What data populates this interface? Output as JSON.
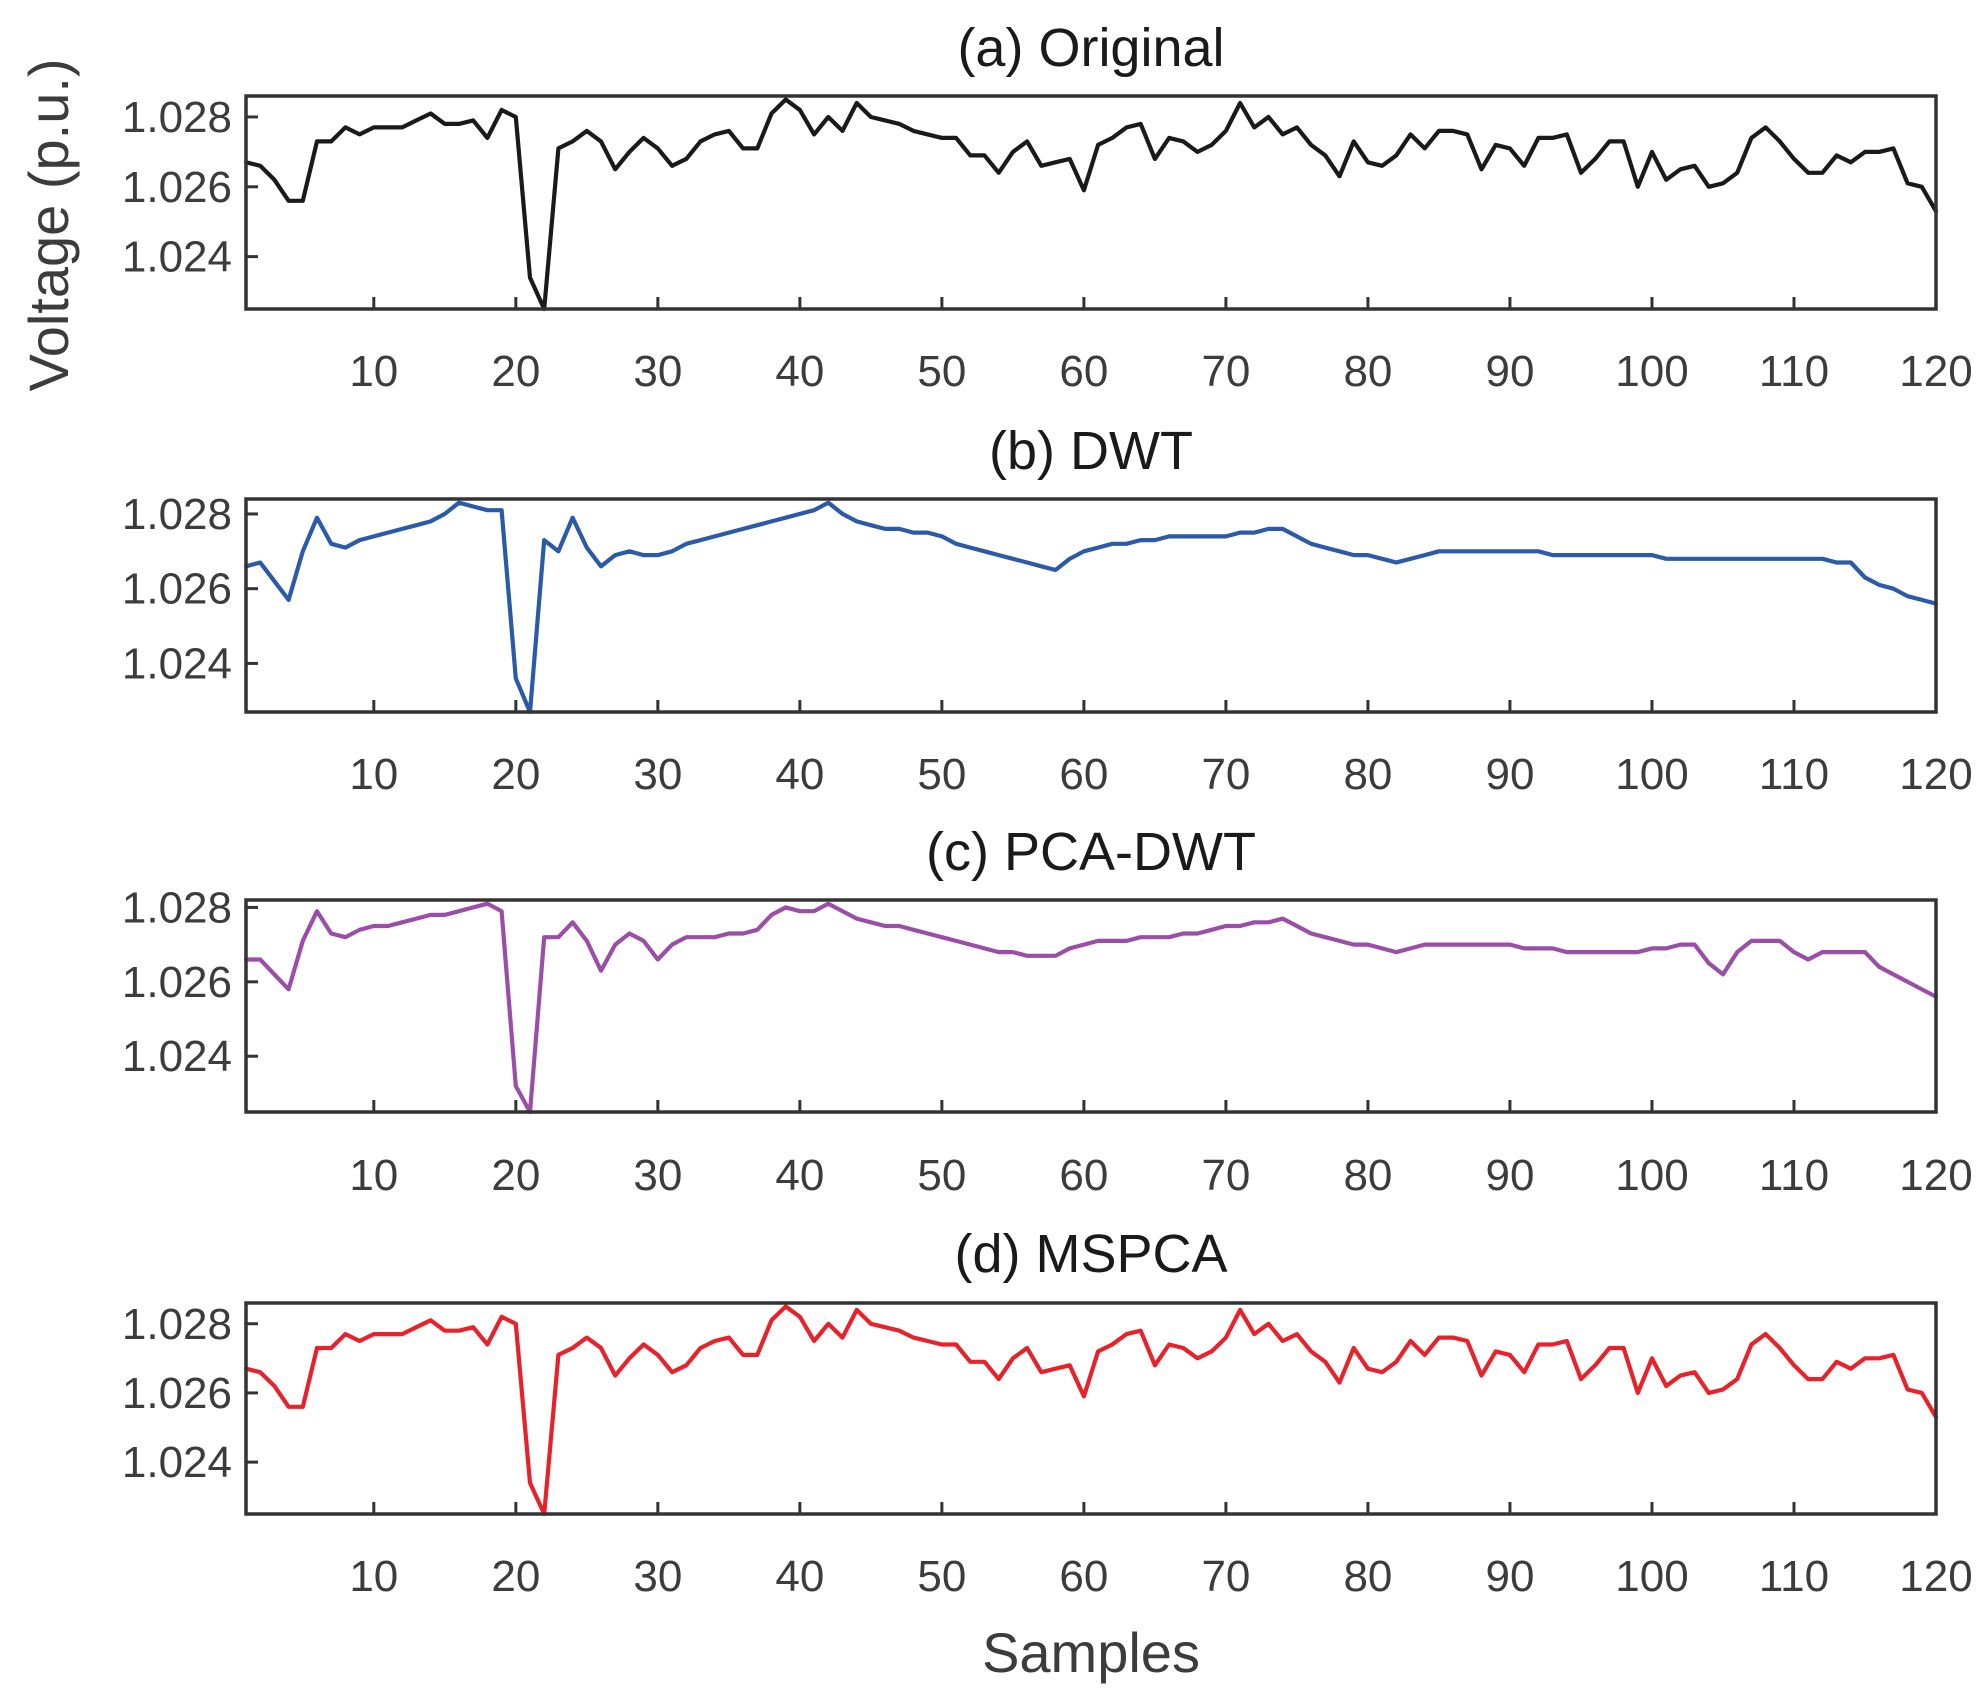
{
  "chart_data": [
    {
      "type": "line",
      "title": "(a) Original",
      "color": "#1a1a1a",
      "xlim": [
        1,
        120
      ],
      "ylim": [
        1.0225,
        1.0286
      ],
      "xticks": [
        10,
        20,
        30,
        40,
        50,
        60,
        70,
        80,
        90,
        100,
        110,
        120
      ],
      "yticks": [
        1.024,
        1.026,
        1.028
      ],
      "ytick_labels": [
        "1.024",
        "1.026",
        "1.028"
      ],
      "series": [
        {
          "name": "Original",
          "x_start": 1,
          "values": [
            1.0267,
            1.0266,
            1.0262,
            1.0256,
            1.0256,
            1.0273,
            1.0273,
            1.0277,
            1.0275,
            1.0277,
            1.0277,
            1.0277,
            1.0279,
            1.0281,
            1.0278,
            1.0278,
            1.0279,
            1.0274,
            1.0282,
            1.028,
            1.0234,
            1.0223,
            1.0271,
            1.0273,
            1.0276,
            1.0273,
            1.0265,
            1.027,
            1.0274,
            1.0271,
            1.0266,
            1.0268,
            1.0273,
            1.0275,
            1.0276,
            1.0271,
            1.0271,
            1.0281,
            1.0285,
            1.0282,
            1.0275,
            1.028,
            1.0276,
            1.0284,
            1.028,
            1.0279,
            1.0278,
            1.0276,
            1.0275,
            1.0274,
            1.0274,
            1.0269,
            1.0269,
            1.0264,
            1.027,
            1.0273,
            1.0266,
            1.0267,
            1.0268,
            1.0259,
            1.0272,
            1.0274,
            1.0277,
            1.0278,
            1.0268,
            1.0274,
            1.0273,
            1.027,
            1.0272,
            1.0276,
            1.0284,
            1.0277,
            1.028,
            1.0275,
            1.0277,
            1.0272,
            1.0269,
            1.0263,
            1.0273,
            1.0267,
            1.0266,
            1.0269,
            1.0275,
            1.0271,
            1.0276,
            1.0276,
            1.0275,
            1.0265,
            1.0272,
            1.0271,
            1.0266,
            1.0274,
            1.0274,
            1.0275,
            1.0264,
            1.0268,
            1.0273,
            1.0273,
            1.026,
            1.027,
            1.0262,
            1.0265,
            1.0266,
            1.026,
            1.0261,
            1.0264,
            1.0274,
            1.0277,
            1.0273,
            1.0268,
            1.0264,
            1.0264,
            1.0269,
            1.0267,
            1.027,
            1.027,
            1.0271,
            1.0261,
            1.026,
            1.0253
          ]
        }
      ],
      "xlabel": "",
      "ylabel": "Voltage (p.u.)"
    },
    {
      "type": "line",
      "title": "(b) DWT",
      "color": "#2a5aa8",
      "xlim": [
        1,
        120
      ],
      "ylim": [
        1.0227,
        1.0284
      ],
      "xticks": [
        10,
        20,
        30,
        40,
        50,
        60,
        70,
        80,
        90,
        100,
        110,
        120
      ],
      "yticks": [
        1.024,
        1.026,
        1.028
      ],
      "ytick_labels": [
        "1.024",
        "1.026",
        "1.028"
      ],
      "series": [
        {
          "name": "DWT",
          "x_start": 1,
          "values": [
            1.0266,
            1.0267,
            1.0262,
            1.0257,
            1.027,
            1.0279,
            1.0272,
            1.0271,
            1.0273,
            1.0274,
            1.0275,
            1.0276,
            1.0277,
            1.0278,
            1.028,
            1.0283,
            1.0282,
            1.0281,
            1.0281,
            1.0236,
            1.0227,
            1.0273,
            1.027,
            1.0279,
            1.0271,
            1.0266,
            1.0269,
            1.027,
            1.0269,
            1.0269,
            1.027,
            1.0272,
            1.0273,
            1.0274,
            1.0275,
            1.0276,
            1.0277,
            1.0278,
            1.0279,
            1.028,
            1.0281,
            1.0283,
            1.028,
            1.0278,
            1.0277,
            1.0276,
            1.0276,
            1.0275,
            1.0275,
            1.0274,
            1.0272,
            1.0271,
            1.027,
            1.0269,
            1.0268,
            1.0267,
            1.0266,
            1.0265,
            1.0268,
            1.027,
            1.0271,
            1.0272,
            1.0272,
            1.0273,
            1.0273,
            1.0274,
            1.0274,
            1.0274,
            1.0274,
            1.0274,
            1.0275,
            1.0275,
            1.0276,
            1.0276,
            1.0274,
            1.0272,
            1.0271,
            1.027,
            1.0269,
            1.0269,
            1.0268,
            1.0267,
            1.0268,
            1.0269,
            1.027,
            1.027,
            1.027,
            1.027,
            1.027,
            1.027,
            1.027,
            1.027,
            1.0269,
            1.0269,
            1.0269,
            1.0269,
            1.0269,
            1.0269,
            1.0269,
            1.0269,
            1.0268,
            1.0268,
            1.0268,
            1.0268,
            1.0268,
            1.0268,
            1.0268,
            1.0268,
            1.0268,
            1.0268,
            1.0268,
            1.0268,
            1.0267,
            1.0267,
            1.0263,
            1.0261,
            1.026,
            1.0258,
            1.0257,
            1.0256
          ]
        }
      ],
      "xlabel": "",
      "ylabel": ""
    },
    {
      "type": "line",
      "title": "(c) PCA-DWT",
      "color": "#9b4ea8",
      "xlim": [
        1,
        120
      ],
      "ylim": [
        1.0225,
        1.0282
      ],
      "xticks": [
        10,
        20,
        30,
        40,
        50,
        60,
        70,
        80,
        90,
        100,
        110,
        120
      ],
      "yticks": [
        1.024,
        1.026,
        1.028
      ],
      "ytick_labels": [
        "1.024",
        "1.026",
        "1.028"
      ],
      "series": [
        {
          "name": "PCA-DWT",
          "x_start": 1,
          "values": [
            1.0266,
            1.0266,
            1.0262,
            1.0258,
            1.0271,
            1.0279,
            1.0273,
            1.0272,
            1.0274,
            1.0275,
            1.0275,
            1.0276,
            1.0277,
            1.0278,
            1.0278,
            1.0279,
            1.028,
            1.0281,
            1.0279,
            1.0232,
            1.0225,
            1.0272,
            1.0272,
            1.0276,
            1.0271,
            1.0263,
            1.027,
            1.0273,
            1.0271,
            1.0266,
            1.027,
            1.0272,
            1.0272,
            1.0272,
            1.0273,
            1.0273,
            1.0274,
            1.0278,
            1.028,
            1.0279,
            1.0279,
            1.0281,
            1.0279,
            1.0277,
            1.0276,
            1.0275,
            1.0275,
            1.0274,
            1.0273,
            1.0272,
            1.0271,
            1.027,
            1.0269,
            1.0268,
            1.0268,
            1.0267,
            1.0267,
            1.0267,
            1.0269,
            1.027,
            1.0271,
            1.0271,
            1.0271,
            1.0272,
            1.0272,
            1.0272,
            1.0273,
            1.0273,
            1.0274,
            1.0275,
            1.0275,
            1.0276,
            1.0276,
            1.0277,
            1.0275,
            1.0273,
            1.0272,
            1.0271,
            1.027,
            1.027,
            1.0269,
            1.0268,
            1.0269,
            1.027,
            1.027,
            1.027,
            1.027,
            1.027,
            1.027,
            1.027,
            1.0269,
            1.0269,
            1.0269,
            1.0268,
            1.0268,
            1.0268,
            1.0268,
            1.0268,
            1.0268,
            1.0269,
            1.0269,
            1.027,
            1.027,
            1.0265,
            1.0262,
            1.0268,
            1.0271,
            1.0271,
            1.0271,
            1.0268,
            1.0266,
            1.0268,
            1.0268,
            1.0268,
            1.0268,
            1.0264,
            1.0262,
            1.026,
            1.0258,
            1.0256
          ]
        }
      ],
      "xlabel": "",
      "ylabel": ""
    },
    {
      "type": "line",
      "title": "(d) MSPCA",
      "color": "#e8222a",
      "xlim": [
        1,
        120
      ],
      "ylim": [
        1.0225,
        1.0286
      ],
      "xticks": [
        10,
        20,
        30,
        40,
        50,
        60,
        70,
        80,
        90,
        100,
        110,
        120
      ],
      "yticks": [
        1.024,
        1.026,
        1.028
      ],
      "ytick_labels": [
        "1.024",
        "1.026",
        "1.028"
      ],
      "series": [
        {
          "name": "MSPCA",
          "x_start": 1,
          "values": [
            1.0267,
            1.0266,
            1.0262,
            1.0256,
            1.0256,
            1.0273,
            1.0273,
            1.0277,
            1.0275,
            1.0277,
            1.0277,
            1.0277,
            1.0279,
            1.0281,
            1.0278,
            1.0278,
            1.0279,
            1.0274,
            1.0282,
            1.028,
            1.0234,
            1.0223,
            1.0271,
            1.0273,
            1.0276,
            1.0273,
            1.0265,
            1.027,
            1.0274,
            1.0271,
            1.0266,
            1.0268,
            1.0273,
            1.0275,
            1.0276,
            1.0271,
            1.0271,
            1.0281,
            1.0285,
            1.0282,
            1.0275,
            1.028,
            1.0276,
            1.0284,
            1.028,
            1.0279,
            1.0278,
            1.0276,
            1.0275,
            1.0274,
            1.0274,
            1.0269,
            1.0269,
            1.0264,
            1.027,
            1.0273,
            1.0266,
            1.0267,
            1.0268,
            1.0259,
            1.0272,
            1.0274,
            1.0277,
            1.0278,
            1.0268,
            1.0274,
            1.0273,
            1.027,
            1.0272,
            1.0276,
            1.0284,
            1.0277,
            1.028,
            1.0275,
            1.0277,
            1.0272,
            1.0269,
            1.0263,
            1.0273,
            1.0267,
            1.0266,
            1.0269,
            1.0275,
            1.0271,
            1.0276,
            1.0276,
            1.0275,
            1.0265,
            1.0272,
            1.0271,
            1.0266,
            1.0274,
            1.0274,
            1.0275,
            1.0264,
            1.0268,
            1.0273,
            1.0273,
            1.026,
            1.027,
            1.0262,
            1.0265,
            1.0266,
            1.026,
            1.0261,
            1.0264,
            1.0274,
            1.0277,
            1.0273,
            1.0268,
            1.0264,
            1.0264,
            1.0269,
            1.0267,
            1.027,
            1.027,
            1.0271,
            1.0261,
            1.026,
            1.0253
          ]
        }
      ],
      "xlabel": "Samples",
      "ylabel": ""
    }
  ]
}
